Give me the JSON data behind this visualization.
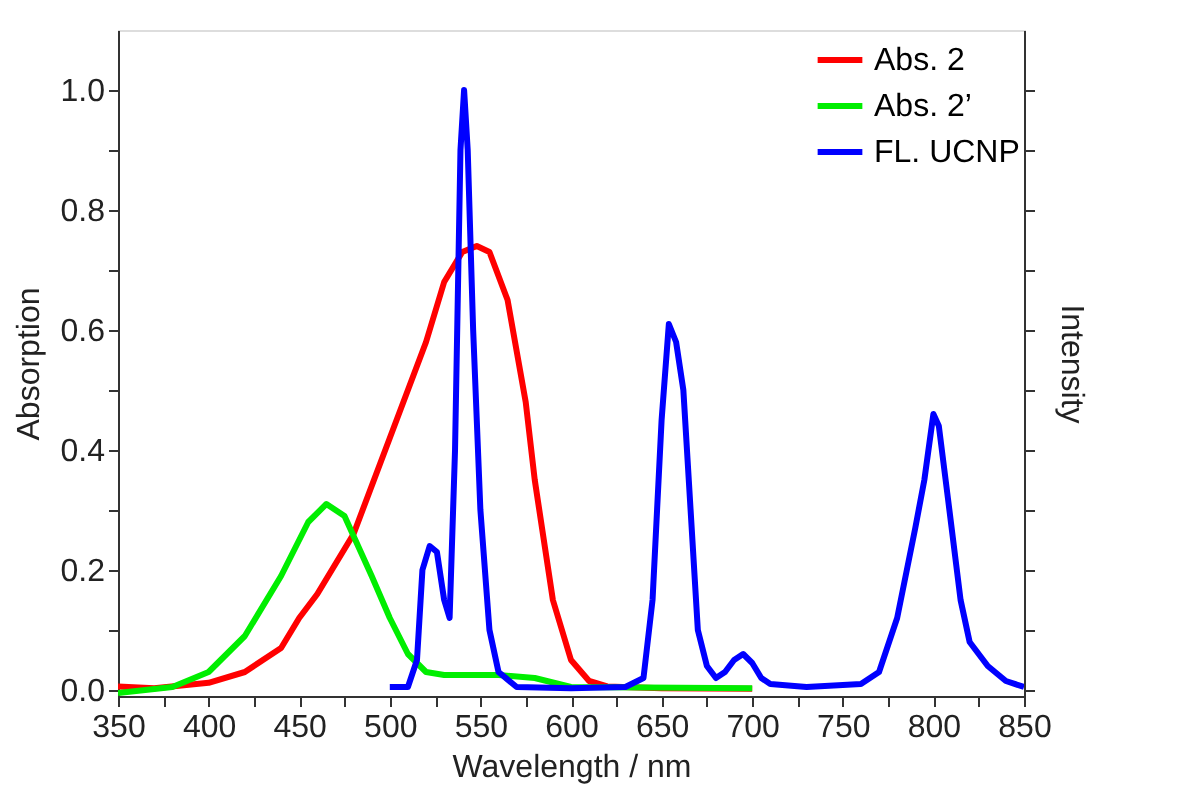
{
  "chart_data": {
    "type": "line",
    "xlabel": "Wavelength / nm",
    "ylabel": "Absorption",
    "y2label": "Intensity",
    "xlim": [
      350,
      850
    ],
    "xticks": [
      350,
      {
        "value": 375,
        "label": null
      },
      400,
      {
        "value": 425,
        "label": null
      },
      450,
      {
        "value": 475,
        "label": null
      },
      500,
      {
        "value": 525,
        "label": null
      },
      550,
      {
        "value": 575,
        "label": null
      },
      600,
      {
        "value": 625,
        "label": null
      },
      650,
      {
        "value": 675,
        "label": null
      },
      700,
      {
        "value": 725,
        "label": null
      },
      750,
      {
        "value": 775,
        "label": null
      },
      800,
      {
        "value": 825,
        "label": null
      },
      850
    ],
    "ylim": [
      -0.01,
      1.1
    ],
    "yticks": [
      {
        "value": 0,
        "label": "0.0"
      },
      {
        "value": 0.1,
        "label": null
      },
      0.2,
      {
        "value": 0.3,
        "label": null
      },
      0.4,
      {
        "value": 0.5,
        "label": null
      },
      0.6,
      {
        "value": 0.7,
        "label": null
      },
      0.8,
      {
        "value": 0.9,
        "label": null
      },
      {
        "value": 1,
        "label": "1.0"
      }
    ],
    "legend": "top right",
    "grid": false,
    "line_style": "solid",
    "marker": "none",
    "series": [
      {
        "name": "Abs. 2",
        "color": "#ff0000",
        "x": [
          350,
          370,
          400,
          420,
          440,
          450,
          460,
          480,
          500,
          510,
          520,
          530,
          540,
          548,
          555,
          565,
          575,
          580,
          590,
          600,
          610,
          620,
          650,
          700
        ],
        "values": [
          0.006,
          0.003,
          0.012,
          0.03,
          0.07,
          0.12,
          0.16,
          0.26,
          0.42,
          0.5,
          0.58,
          0.68,
          0.73,
          0.74,
          0.73,
          0.65,
          0.48,
          0.35,
          0.15,
          0.05,
          0.015,
          0.006,
          0.003,
          0.002
        ]
      },
      {
        "name": "Abs. 2’",
        "color": "#00ee00",
        "x": [
          350,
          380,
          400,
          420,
          440,
          455,
          465,
          475,
          490,
          500,
          510,
          520,
          530,
          560,
          580,
          600,
          700
        ],
        "values": [
          -0.005,
          0.005,
          0.03,
          0.09,
          0.19,
          0.28,
          0.31,
          0.29,
          0.19,
          0.12,
          0.06,
          0.03,
          0.025,
          0.025,
          0.02,
          0.005,
          0.003
        ]
      },
      {
        "name": "FL. UCNP",
        "color": "#0000ff",
        "x": [
          500,
          510,
          515,
          518,
          522,
          526,
          530,
          533,
          536,
          539,
          541,
          543,
          546,
          550,
          555,
          560,
          570,
          600,
          630,
          640,
          645,
          650,
          654,
          658,
          662,
          665,
          670,
          675,
          680,
          685,
          690,
          695,
          700,
          705,
          710,
          730,
          760,
          770,
          780,
          790,
          795,
          800,
          803,
          808,
          815,
          820,
          830,
          840,
          850
        ],
        "values": [
          0.005,
          0.005,
          0.05,
          0.2,
          0.24,
          0.23,
          0.15,
          0.12,
          0.4,
          0.9,
          1.0,
          0.9,
          0.6,
          0.3,
          0.1,
          0.03,
          0.005,
          0.003,
          0.005,
          0.02,
          0.15,
          0.45,
          0.61,
          0.58,
          0.5,
          0.35,
          0.1,
          0.04,
          0.02,
          0.03,
          0.05,
          0.06,
          0.045,
          0.02,
          0.01,
          0.005,
          0.01,
          0.03,
          0.12,
          0.27,
          0.35,
          0.46,
          0.44,
          0.32,
          0.15,
          0.08,
          0.04,
          0.015,
          0.005
        ]
      }
    ]
  }
}
